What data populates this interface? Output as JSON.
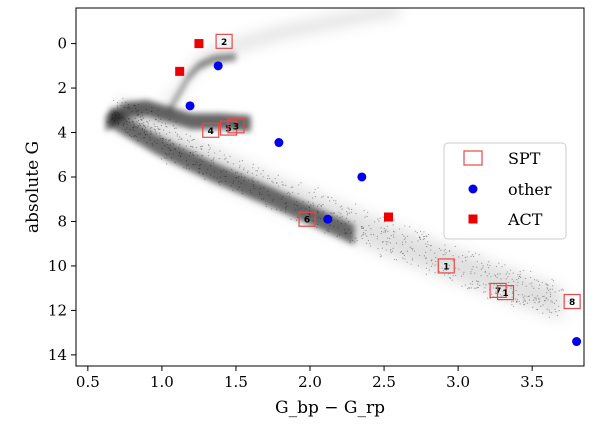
{
  "chart_data": {
    "type": "scatter",
    "xlabel": "G_bp − G_rp",
    "ylabel": "absolute G",
    "xlim": [
      0.42,
      3.85
    ],
    "ylim": [
      14.5,
      -1.6
    ],
    "y_inverted": true,
    "grid": false,
    "legend_position": "center-right",
    "xticks": [
      0.5,
      1.0,
      1.5,
      2.0,
      2.5,
      3.0,
      3.5
    ],
    "xtick_labels": [
      "0.5",
      "1.0",
      "1.5",
      "2.0",
      "2.5",
      "3.0",
      "3.5"
    ],
    "yticks": [
      0,
      2,
      4,
      6,
      8,
      10,
      12,
      14
    ],
    "ytick_labels": [
      "0",
      "2",
      "4",
      "6",
      "8",
      "10",
      "12",
      "14"
    ],
    "background_density": {
      "description_color": "#000000",
      "note": "dense black cloud of field stars (main sequence + giant branch)"
    },
    "series": [
      {
        "name": "SPT",
        "marker": "open-square",
        "color": "#e8484a",
        "points": [
          {
            "x": 1.42,
            "y": -0.1,
            "label": "2"
          },
          {
            "x": 1.33,
            "y": 3.9,
            "label": "4"
          },
          {
            "x": 1.45,
            "y": 3.8,
            "label": "5"
          },
          {
            "x": 1.5,
            "y": 3.7,
            "label": "3"
          },
          {
            "x": 1.98,
            "y": 7.9,
            "label": "6"
          },
          {
            "x": 2.92,
            "y": 10.0,
            "label": "1"
          },
          {
            "x": 3.27,
            "y": 11.1,
            "label": "7"
          },
          {
            "x": 3.32,
            "y": 11.2,
            "label": "1"
          },
          {
            "x": 3.77,
            "y": 11.6,
            "label": "8"
          }
        ]
      },
      {
        "name": "other",
        "marker": "circle",
        "color": "#0000ee",
        "points": [
          {
            "x": 1.38,
            "y": 1.0
          },
          {
            "x": 1.19,
            "y": 2.8
          },
          {
            "x": 1.79,
            "y": 4.45
          },
          {
            "x": 2.35,
            "y": 6.0
          },
          {
            "x": 2.12,
            "y": 7.9
          },
          {
            "x": 3.8,
            "y": 13.4
          }
        ]
      },
      {
        "name": "ACT",
        "marker": "filled-square",
        "color": "#ee0000",
        "points": [
          {
            "x": 1.25,
            "y": 0.0
          },
          {
            "x": 1.12,
            "y": 1.25
          },
          {
            "x": 2.53,
            "y": 7.8
          }
        ]
      }
    ]
  }
}
